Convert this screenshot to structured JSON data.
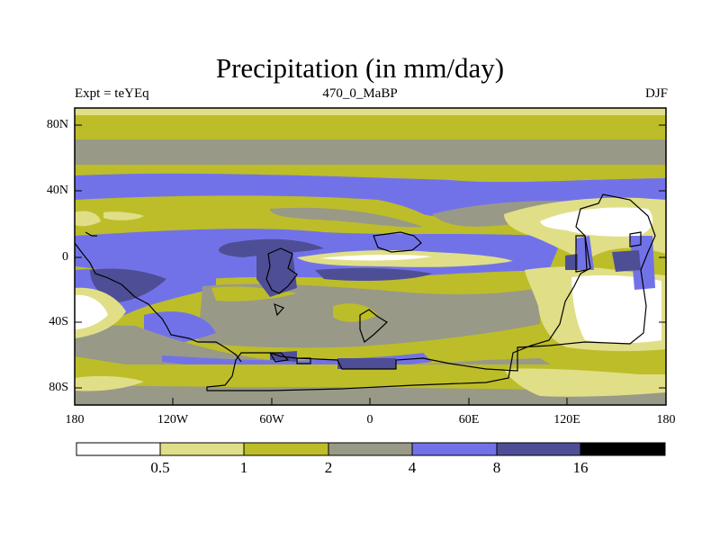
{
  "title": "Precipitation (in mm/day)",
  "left_string": "Expt = teYEq",
  "center_string": "470_0_MaBP",
  "right_string": "DJF",
  "lat_ticks": [
    "80N",
    "40N",
    "0",
    "40S",
    "80S"
  ],
  "lon_ticks": [
    "180",
    "120W",
    "60W",
    "0",
    "60E",
    "120E",
    "180"
  ],
  "colorbar": {
    "colors": [
      "#ffffff",
      "#e0df88",
      "#bdbd29",
      "#999988",
      "#7272e8",
      "#4e4e96",
      "#000000"
    ],
    "labels": [
      "0.5",
      "1",
      "2",
      "4",
      "8",
      "16"
    ]
  }
}
